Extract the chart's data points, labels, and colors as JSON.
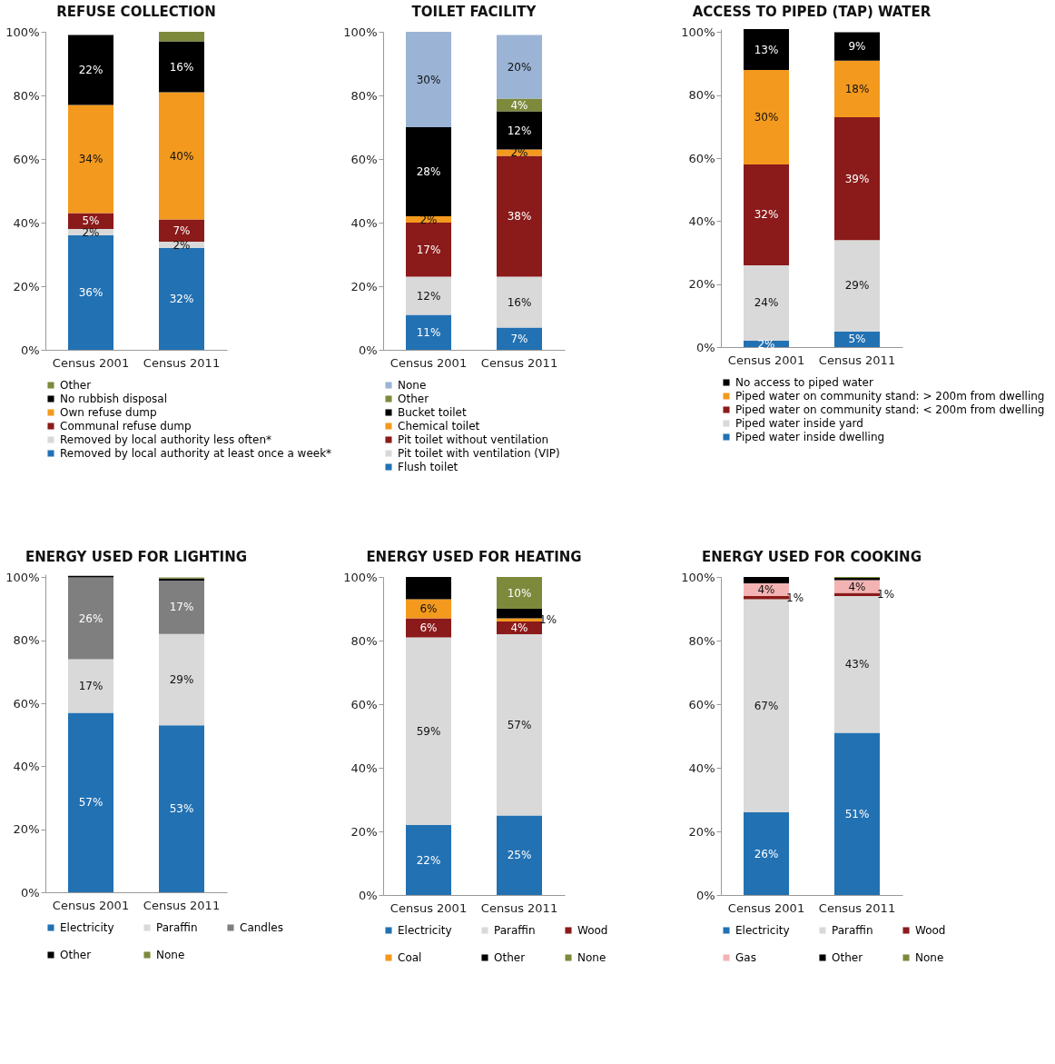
{
  "chart_data": [
    {
      "type": "bar",
      "title": "REFUSE COLLECTION",
      "categories": [
        "Census 2001",
        "Census 2011"
      ],
      "stacked": true,
      "legend": "bottom",
      "ylim": [
        0,
        100
      ],
      "yticks": [
        {
          "value": 0,
          "label": "0%"
        },
        {
          "value": 20,
          "label": "20%"
        },
        {
          "value": 40,
          "label": "40%"
        },
        {
          "value": 60,
          "label": "60%"
        },
        {
          "value": 80,
          "label": "80%"
        },
        {
          "value": 100,
          "label": "100%"
        }
      ],
      "series": [
        {
          "name": "Removed by local authority at least once a week*",
          "color": "#2271b3",
          "values": [
            36,
            32
          ],
          "value_labels": [
            "36%",
            "32%"
          ]
        },
        {
          "name": "Removed by local authority less often*",
          "color": "#d9d9d9",
          "values": [
            2,
            2
          ],
          "value_labels": [
            "2%",
            "2%"
          ]
        },
        {
          "name": "Communal refuse dump",
          "color": "#8b1a1a",
          "values": [
            5,
            7
          ],
          "value_labels": [
            "5%",
            "7%"
          ]
        },
        {
          "name": "Own refuse dump",
          "color": "#f39a1e",
          "values": [
            34,
            40
          ],
          "value_labels": [
            "34%",
            "40%"
          ]
        },
        {
          "name": "No rubbish disposal",
          "color": "#000000",
          "values": [
            22,
            16
          ],
          "value_labels": [
            "22%",
            "16%"
          ]
        },
        {
          "name": "Other",
          "color": "#7d8a3c",
          "values": [
            null,
            3
          ],
          "value_labels": [
            null,
            null
          ]
        }
      ]
    },
    {
      "type": "bar",
      "title": "TOILET FACILITY",
      "categories": [
        "Census 2001",
        "Census 2011"
      ],
      "stacked": true,
      "legend": "bottom",
      "ylim": [
        0,
        100
      ],
      "yticks": [
        {
          "value": 0,
          "label": "0%"
        },
        {
          "value": 20,
          "label": "20%"
        },
        {
          "value": 40,
          "label": "40%"
        },
        {
          "value": 60,
          "label": "60%"
        },
        {
          "value": 80,
          "label": "80%"
        },
        {
          "value": 100,
          "label": "100%"
        }
      ],
      "series": [
        {
          "name": "Flush toilet",
          "color": "#2271b3",
          "values": [
            11,
            7
          ],
          "value_labels": [
            "11%",
            "7%"
          ]
        },
        {
          "name": "Pit toilet with ventilation (VIP)",
          "color": "#d9d9d9",
          "values": [
            12,
            16
          ],
          "value_labels": [
            "12%",
            "16%"
          ]
        },
        {
          "name": "Pit toilet without ventilation",
          "color": "#8b1a1a",
          "values": [
            17,
            38
          ],
          "value_labels": [
            "17%",
            "38%"
          ]
        },
        {
          "name": "Chemical toilet",
          "color": "#f39a1e",
          "values": [
            2,
            2
          ],
          "value_labels": [
            "2%",
            "2%"
          ]
        },
        {
          "name": "Bucket toilet",
          "color": "#000000",
          "values": [
            28,
            12
          ],
          "value_labels": [
            "28%",
            "12%"
          ]
        },
        {
          "name": "Other",
          "color": "#7d8a3c",
          "values": [
            null,
            4
          ],
          "value_labels": [
            null,
            "4%"
          ]
        },
        {
          "name": "None",
          "color": "#9bb4d6",
          "values": [
            30,
            20
          ],
          "value_labels": [
            "30%",
            "20%"
          ]
        }
      ]
    },
    {
      "type": "bar",
      "title": "ACCESS TO PIPED (TAP) WATER",
      "categories": [
        "Census 2001",
        "Census 2011"
      ],
      "stacked": true,
      "legend": "bottom",
      "ylim": [
        0,
        101
      ],
      "yticks": [
        {
          "value": 0,
          "label": "0%"
        },
        {
          "value": 20,
          "label": "20%"
        },
        {
          "value": 40,
          "label": "40%"
        },
        {
          "value": 60,
          "label": "60%"
        },
        {
          "value": 80,
          "label": "80%"
        },
        {
          "value": 100,
          "label": "100%"
        }
      ],
      "series": [
        {
          "name": "Piped water inside dwelling",
          "color": "#2271b3",
          "values": [
            2,
            5
          ],
          "value_labels": [
            "2%",
            "5%"
          ]
        },
        {
          "name": "Piped water inside yard",
          "color": "#d9d9d9",
          "values": [
            24,
            29
          ],
          "value_labels": [
            "24%",
            "29%"
          ]
        },
        {
          "name": "Piped water on community stand: < 200m from dwelling",
          "color": "#8b1a1a",
          "values": [
            32,
            39
          ],
          "value_labels": [
            "32%",
            "39%"
          ]
        },
        {
          "name": "Piped water on community stand: > 200m from dwelling",
          "color": "#f39a1e",
          "values": [
            30,
            18
          ],
          "value_labels": [
            "30%",
            "18%"
          ]
        },
        {
          "name": "No access to piped water",
          "color": "#000000",
          "values": [
            13,
            9
          ],
          "value_labels": [
            "13%",
            "9%"
          ]
        }
      ]
    },
    {
      "type": "bar",
      "title": "ENERGY USED FOR LIGHTING",
      "categories": [
        "Census 2001",
        "Census 2011"
      ],
      "stacked": true,
      "legend": "bottom",
      "ylim": [
        0,
        101
      ],
      "yticks": [
        {
          "value": 0,
          "label": "0%"
        },
        {
          "value": 20,
          "label": "20%"
        },
        {
          "value": 40,
          "label": "40%"
        },
        {
          "value": 60,
          "label": "60%"
        },
        {
          "value": 80,
          "label": "80%"
        },
        {
          "value": 100,
          "label": "100%"
        }
      ],
      "series": [
        {
          "name": "Electricity",
          "color": "#2271b3",
          "values": [
            57,
            53
          ],
          "value_labels": [
            "57%",
            "53%"
          ]
        },
        {
          "name": "Paraffin",
          "color": "#d9d9d9",
          "values": [
            17,
            29
          ],
          "value_labels": [
            "17%",
            "29%"
          ]
        },
        {
          "name": "Candles",
          "color": "#7f7f7f",
          "values": [
            26,
            17
          ],
          "value_labels": [
            "26%",
            "17%"
          ]
        },
        {
          "name": "Other",
          "color": "#000000",
          "values": [
            0.5,
            0.6
          ],
          "value_labels": [
            null,
            null
          ]
        },
        {
          "name": "None",
          "color": "#7d8a3c",
          "values": [
            null,
            0.4
          ],
          "value_labels": [
            null,
            null
          ]
        }
      ]
    },
    {
      "type": "bar",
      "title": "ENERGY USED FOR HEATING",
      "categories": [
        "Census 2001",
        "Census 2011"
      ],
      "stacked": true,
      "legend": "bottom",
      "ylim": [
        0,
        100
      ],
      "yticks": [
        {
          "value": 0,
          "label": "0%"
        },
        {
          "value": 20,
          "label": "20%"
        },
        {
          "value": 40,
          "label": "40%"
        },
        {
          "value": 60,
          "label": "60%"
        },
        {
          "value": 80,
          "label": "80%"
        },
        {
          "value": 100,
          "label": "100%"
        }
      ],
      "series": [
        {
          "name": "Electricity",
          "color": "#2271b3",
          "values": [
            22,
            25
          ],
          "value_labels": [
            "22%",
            "25%"
          ]
        },
        {
          "name": "Paraffin",
          "color": "#d9d9d9",
          "values": [
            59,
            57
          ],
          "value_labels": [
            "59%",
            "57%"
          ]
        },
        {
          "name": "Wood",
          "color": "#8b1a1a",
          "values": [
            6,
            4
          ],
          "value_labels": [
            "6%",
            "4%"
          ]
        },
        {
          "name": "Coal",
          "color": "#f39a1e",
          "values": [
            6,
            1
          ],
          "value_labels": [
            "6%",
            "1%"
          ]
        },
        {
          "name": "Other",
          "color": "#000000",
          "values": [
            7,
            3
          ],
          "value_labels": [
            null,
            null
          ]
        },
        {
          "name": "None",
          "color": "#7d8a3c",
          "values": [
            null,
            10
          ],
          "value_labels": [
            null,
            "10%"
          ]
        }
      ]
    },
    {
      "type": "bar",
      "title": "ENERGY USED FOR COOKING",
      "categories": [
        "Census 2001",
        "Census 2011"
      ],
      "stacked": true,
      "legend": "bottom",
      "ylim": [
        0,
        100
      ],
      "yticks": [
        {
          "value": 0,
          "label": "0%"
        },
        {
          "value": 20,
          "label": "20%"
        },
        {
          "value": 40,
          "label": "40%"
        },
        {
          "value": 60,
          "label": "60%"
        },
        {
          "value": 80,
          "label": "80%"
        },
        {
          "value": 100,
          "label": "100%"
        }
      ],
      "series": [
        {
          "name": "Electricity",
          "color": "#2271b3",
          "values": [
            26,
            51
          ],
          "value_labels": [
            "26%",
            "51%"
          ]
        },
        {
          "name": "Paraffin",
          "color": "#d9d9d9",
          "values": [
            67,
            43
          ],
          "value_labels": [
            "67%",
            "43%"
          ]
        },
        {
          "name": "Wood",
          "color": "#8b1a1a",
          "values": [
            1,
            1
          ],
          "value_labels": [
            "1%",
            "1%"
          ]
        },
        {
          "name": "Gas",
          "color": "#f4b3b3",
          "values": [
            4,
            4
          ],
          "value_labels": [
            "4%",
            "4%"
          ]
        },
        {
          "name": "Other",
          "color": "#000000",
          "values": [
            2,
            0.7
          ],
          "value_labels": [
            null,
            null
          ]
        },
        {
          "name": "None",
          "color": "#7d8a3c",
          "values": [
            null,
            0.3
          ],
          "value_labels": [
            null,
            null
          ]
        }
      ]
    }
  ]
}
